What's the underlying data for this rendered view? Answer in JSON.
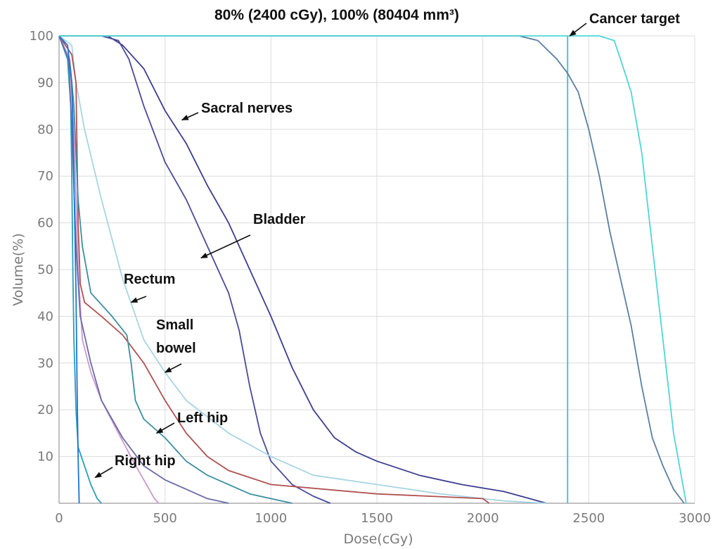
{
  "chart_data": {
    "type": "line",
    "title": "80% (2400 cGy), 100% (80404 mm³)",
    "xlabel": "Dose(cGy)",
    "ylabel": "Volume(%)",
    "xlim": [
      0,
      3000
    ],
    "ylim": [
      0,
      100
    ],
    "x_ticks": [
      0,
      500,
      1000,
      1500,
      2000,
      2500,
      3000
    ],
    "y_ticks": [
      10,
      20,
      30,
      40,
      50,
      60,
      70,
      80,
      90,
      100
    ],
    "grid": true,
    "reference_line": {
      "x": 2400,
      "color": "#4fc3d4"
    },
    "series": [
      {
        "name": "Sacral nerves",
        "color": "#3d3d8f",
        "points": [
          [
            0,
            100
          ],
          [
            230,
            100
          ],
          [
            300,
            98
          ],
          [
            400,
            93
          ],
          [
            500,
            84
          ],
          [
            600,
            77
          ],
          [
            700,
            68
          ],
          [
            800,
            60
          ],
          [
            900,
            50
          ],
          [
            1000,
            40
          ],
          [
            1100,
            29
          ],
          [
            1200,
            20
          ],
          [
            1300,
            14
          ],
          [
            1400,
            11
          ],
          [
            1500,
            9
          ],
          [
            1700,
            6
          ],
          [
            1900,
            4
          ],
          [
            2100,
            2.5
          ],
          [
            2300,
            0
          ]
        ]
      },
      {
        "name": "Bladder",
        "color": "#4a4a9a",
        "points": [
          [
            0,
            100
          ],
          [
            200,
            100
          ],
          [
            280,
            99
          ],
          [
            330,
            95
          ],
          [
            400,
            85
          ],
          [
            500,
            73
          ],
          [
            600,
            65
          ],
          [
            700,
            55
          ],
          [
            800,
            45
          ],
          [
            850,
            37
          ],
          [
            900,
            25
          ],
          [
            950,
            15
          ],
          [
            1000,
            9
          ],
          [
            1100,
            4
          ],
          [
            1200,
            1.5
          ],
          [
            1280,
            0
          ]
        ]
      },
      {
        "name": "Rectum",
        "color": "#a8d5e2",
        "points": [
          [
            0,
            100
          ],
          [
            60,
            98
          ],
          [
            80,
            90
          ],
          [
            120,
            80
          ],
          [
            200,
            65
          ],
          [
            300,
            48
          ],
          [
            400,
            35
          ],
          [
            500,
            28
          ],
          [
            600,
            22
          ],
          [
            800,
            15
          ],
          [
            1000,
            10
          ],
          [
            1200,
            6
          ],
          [
            1500,
            4
          ],
          [
            1800,
            2
          ],
          [
            2100,
            0.5
          ],
          [
            2300,
            0
          ]
        ]
      },
      {
        "name": "Small bowel",
        "color": "#b05050",
        "points": [
          [
            0,
            100
          ],
          [
            60,
            96
          ],
          [
            80,
            90
          ],
          [
            90,
            60
          ],
          [
            100,
            47
          ],
          [
            120,
            43
          ],
          [
            200,
            40
          ],
          [
            300,
            36
          ],
          [
            400,
            30
          ],
          [
            500,
            22
          ],
          [
            600,
            15
          ],
          [
            700,
            10
          ],
          [
            800,
            7
          ],
          [
            1000,
            4
          ],
          [
            1500,
            2
          ],
          [
            2000,
            1
          ],
          [
            2030,
            0
          ]
        ]
      },
      {
        "name": "Left hip",
        "color": "#3a8fa0",
        "points": [
          [
            0,
            100
          ],
          [
            50,
            95
          ],
          [
            70,
            85
          ],
          [
            90,
            65
          ],
          [
            110,
            55
          ],
          [
            150,
            45
          ],
          [
            250,
            40
          ],
          [
            320,
            36
          ],
          [
            340,
            30
          ],
          [
            360,
            22
          ],
          [
            400,
            18
          ],
          [
            500,
            14
          ],
          [
            600,
            9
          ],
          [
            700,
            6
          ],
          [
            800,
            4
          ],
          [
            900,
            2
          ],
          [
            1000,
            1
          ],
          [
            1100,
            0
          ]
        ]
      },
      {
        "name": "Right hip",
        "color": "#2a9fb8",
        "points": [
          [
            0,
            100
          ],
          [
            40,
            95
          ],
          [
            55,
            85
          ],
          [
            60,
            70
          ],
          [
            65,
            50
          ],
          [
            70,
            35
          ],
          [
            80,
            20
          ],
          [
            90,
            12
          ],
          [
            120,
            8
          ],
          [
            150,
            4
          ],
          [
            180,
            1
          ],
          [
            200,
            0
          ]
        ]
      },
      {
        "name": "",
        "color": "#cc99cc",
        "points": [
          [
            0,
            100
          ],
          [
            50,
            95
          ],
          [
            70,
            80
          ],
          [
            90,
            50
          ],
          [
            110,
            35
          ],
          [
            150,
            28
          ],
          [
            200,
            22
          ],
          [
            280,
            15
          ],
          [
            350,
            9
          ],
          [
            400,
            5
          ],
          [
            450,
            1
          ],
          [
            470,
            0
          ]
        ]
      },
      {
        "name": "",
        "color": "#6a6aa8",
        "points": [
          [
            0,
            100
          ],
          [
            45,
            95
          ],
          [
            60,
            80
          ],
          [
            80,
            55
          ],
          [
            100,
            40
          ],
          [
            150,
            30
          ],
          [
            200,
            22
          ],
          [
            300,
            14
          ],
          [
            400,
            8
          ],
          [
            500,
            5
          ],
          [
            600,
            3
          ],
          [
            700,
            1
          ],
          [
            800,
            0
          ]
        ]
      },
      {
        "name": "",
        "color": "#1e73d6",
        "points": [
          [
            0,
            100
          ],
          [
            40,
            98
          ],
          [
            60,
            90
          ],
          [
            70,
            70
          ],
          [
            80,
            45
          ],
          [
            85,
            25
          ],
          [
            90,
            10
          ],
          [
            95,
            0
          ]
        ]
      },
      {
        "name": "",
        "color": "#5a7fa0",
        "points": [
          [
            0,
            100
          ],
          [
            2170,
            100
          ],
          [
            2260,
            99
          ],
          [
            2350,
            95
          ],
          [
            2400,
            92
          ],
          [
            2450,
            88
          ],
          [
            2500,
            80
          ],
          [
            2550,
            70
          ],
          [
            2600,
            58
          ],
          [
            2650,
            48
          ],
          [
            2700,
            38
          ],
          [
            2750,
            25
          ],
          [
            2800,
            14
          ],
          [
            2850,
            8
          ],
          [
            2900,
            3
          ],
          [
            2950,
            0
          ]
        ]
      },
      {
        "name": "Cancer target",
        "color": "#4fd6d6",
        "points": [
          [
            0,
            100
          ],
          [
            2400,
            100
          ],
          [
            2550,
            100
          ],
          [
            2620,
            99
          ],
          [
            2650,
            95
          ],
          [
            2700,
            88
          ],
          [
            2750,
            75
          ],
          [
            2800,
            55
          ],
          [
            2850,
            35
          ],
          [
            2900,
            15
          ],
          [
            2940,
            5
          ],
          [
            2960,
            0
          ]
        ]
      }
    ],
    "annotations": [
      {
        "text": "Sacral nerves",
        "arrow_to": [
          580,
          82
        ]
      },
      {
        "text": "Bladder",
        "arrow_to": [
          670,
          52.5
        ]
      },
      {
        "text": "Rectum",
        "arrow_to": [
          340,
          43
        ]
      },
      {
        "text": "Small",
        "arrow_to": null
      },
      {
        "text": "bowel",
        "arrow_to": [
          500,
          28
        ]
      },
      {
        "text": "Left hip",
        "arrow_to": [
          460,
          15
        ]
      },
      {
        "text": "Right hip",
        "arrow_to": [
          170,
          5.5
        ]
      },
      {
        "text": "Cancer target",
        "arrow_to": [
          2410,
          100
        ]
      }
    ]
  }
}
